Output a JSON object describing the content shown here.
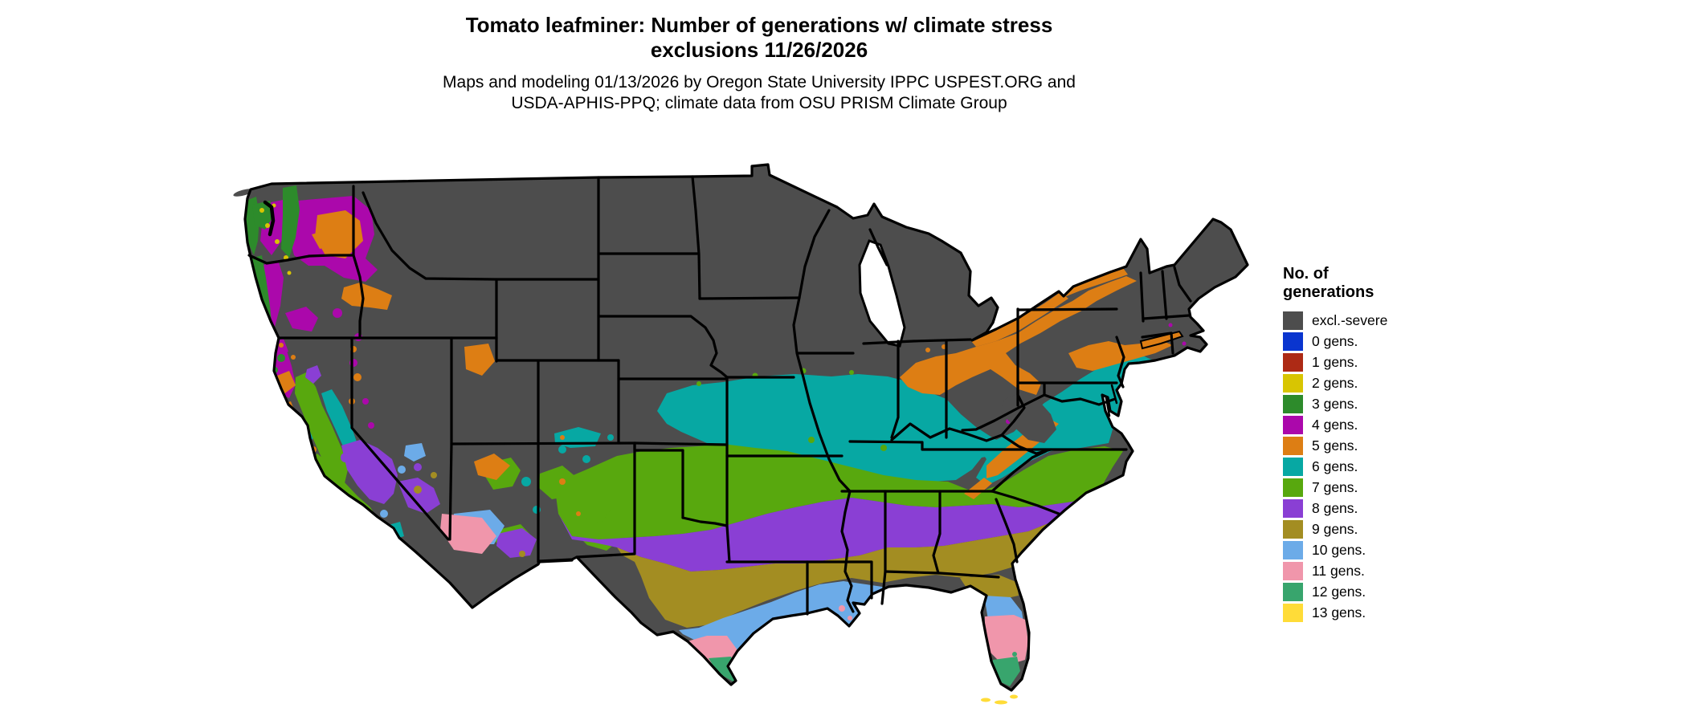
{
  "title": {
    "line1": "Tomato leafminer: Number of generations w/ climate stress",
    "line2": "exclusions 11/26/2026"
  },
  "subtitle": {
    "line1": "Maps and modeling 01/13/2026 by Oregon State University IPPC USPEST.ORG and",
    "line2": "USDA-APHIS-PPQ; climate data from OSU PRISM Climate Group"
  },
  "legend": {
    "title_line1": "No. of",
    "title_line2": "generations",
    "items": [
      {
        "key": "excl",
        "label": "excl.-severe",
        "color": "#4d4d4d"
      },
      {
        "key": "g0",
        "label": "0 gens.",
        "color": "#0a35cf"
      },
      {
        "key": "g1",
        "label": "1 gens.",
        "color": "#ad2a15"
      },
      {
        "key": "g2",
        "label": "2 gens.",
        "color": "#d8c502"
      },
      {
        "key": "g3",
        "label": "3 gens.",
        "color": "#2d8b2b"
      },
      {
        "key": "g4",
        "label": "4 gens.",
        "color": "#ab08ab"
      },
      {
        "key": "g5",
        "label": "5 gens.",
        "color": "#dd7e14"
      },
      {
        "key": "g6",
        "label": "6 gens.",
        "color": "#07a8a3"
      },
      {
        "key": "g7",
        "label": "7 gens.",
        "color": "#58a80e"
      },
      {
        "key": "g8",
        "label": "8 gens.",
        "color": "#8a3fd4"
      },
      {
        "key": "g9",
        "label": "9 gens.",
        "color": "#a38d22"
      },
      {
        "key": "g10",
        "label": "10 gens.",
        "color": "#6cabe8"
      },
      {
        "key": "g11",
        "label": "11 gens.",
        "color": "#f096ab"
      },
      {
        "key": "g12",
        "label": "12 gens.",
        "color": "#38a56d"
      },
      {
        "key": "g13",
        "label": "13 gens.",
        "color": "#ffdc38"
      }
    ]
  },
  "map": {
    "pest": "Tomato leafminer",
    "map_date": "11/26/2026",
    "model_date": "01/13/2026",
    "region": "Continental United States",
    "border_color": "#000000",
    "water_color": "#ffffff",
    "base_fill_key": "excl"
  }
}
